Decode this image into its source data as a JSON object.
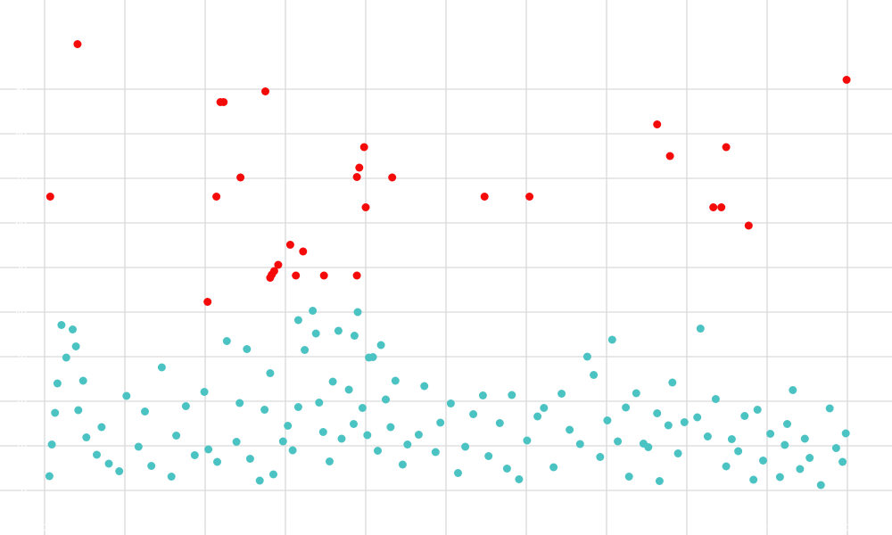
{
  "chart_data": {
    "type": "scatter",
    "title": "",
    "xlabel": "",
    "ylabel": "",
    "xlim": [
      0,
      100
    ],
    "ylim": [
      0,
      100
    ],
    "x_ticks": [
      0,
      10,
      20,
      30,
      40,
      50,
      60,
      70,
      80,
      90,
      100
    ],
    "y_ticks": [
      0,
      10,
      20,
      30,
      40,
      50,
      60,
      70,
      80,
      90
    ],
    "grid": true,
    "legend": "none",
    "series": [
      {
        "color": "#4cc3c3",
        "points": [
          [
            0.6,
            3.2
          ],
          [
            0.9,
            10.3
          ],
          [
            1.3,
            17.4
          ],
          [
            1.6,
            24.0
          ],
          [
            2.1,
            37.1
          ],
          [
            2.7,
            29.8
          ],
          [
            3.5,
            36.1
          ],
          [
            3.9,
            32.3
          ],
          [
            4.2,
            18.0
          ],
          [
            4.8,
            24.6
          ],
          [
            5.2,
            11.9
          ],
          [
            6.5,
            8.0
          ],
          [
            7.1,
            14.2
          ],
          [
            8.0,
            6.0
          ],
          [
            9.3,
            4.3
          ],
          [
            10.2,
            21.2
          ],
          [
            11.7,
            9.8
          ],
          [
            12.5,
            17.7
          ],
          [
            13.3,
            5.5
          ],
          [
            14.6,
            27.6
          ],
          [
            15.8,
            3.1
          ],
          [
            16.4,
            12.3
          ],
          [
            17.6,
            18.9
          ],
          [
            18.7,
            7.9
          ],
          [
            19.9,
            22.1
          ],
          [
            20.4,
            9.2
          ],
          [
            21.5,
            6.4
          ],
          [
            22.7,
            33.5
          ],
          [
            23.9,
            10.9
          ],
          [
            24.3,
            19.6
          ],
          [
            25.2,
            31.7
          ],
          [
            25.6,
            7.1
          ],
          [
            26.8,
            2.2
          ],
          [
            27.4,
            18.1
          ],
          [
            28.1,
            26.3
          ],
          [
            28.5,
            3.6
          ],
          [
            29.7,
            11.0
          ],
          [
            30.3,
            14.5
          ],
          [
            30.9,
            9.0
          ],
          [
            31.6,
            18.7
          ],
          [
            31.6,
            38.2
          ],
          [
            32.4,
            31.5
          ],
          [
            33.4,
            40.3
          ],
          [
            33.8,
            35.2
          ],
          [
            34.2,
            19.7
          ],
          [
            34.7,
            13.1
          ],
          [
            35.5,
            6.5
          ],
          [
            35.9,
            24.4
          ],
          [
            36.6,
            35.8
          ],
          [
            37.0,
            11.6
          ],
          [
            37.9,
            22.6
          ],
          [
            38.5,
            14.9
          ],
          [
            38.6,
            34.7
          ],
          [
            39.0,
            40.0
          ],
          [
            39.6,
            18.5
          ],
          [
            40.2,
            12.4
          ],
          [
            40.4,
            29.8
          ],
          [
            40.9,
            29.9
          ],
          [
            41.5,
            8.9
          ],
          [
            41.9,
            32.6
          ],
          [
            42.5,
            20.4
          ],
          [
            43.1,
            14.2
          ],
          [
            43.7,
            24.6
          ],
          [
            44.6,
            5.8
          ],
          [
            45.2,
            10.3
          ],
          [
            46.6,
            12.5
          ],
          [
            47.3,
            23.4
          ],
          [
            48.7,
            8.6
          ],
          [
            49.3,
            15.2
          ],
          [
            50.6,
            19.5
          ],
          [
            51.5,
            3.9
          ],
          [
            52.4,
            9.8
          ],
          [
            53.4,
            17.1
          ],
          [
            54.6,
            21.3
          ],
          [
            55.3,
            7.7
          ],
          [
            56.7,
            15.1
          ],
          [
            57.6,
            4.9
          ],
          [
            58.2,
            21.4
          ],
          [
            59.1,
            2.5
          ],
          [
            60.1,
            11.2
          ],
          [
            61.4,
            16.6
          ],
          [
            62.2,
            18.5
          ],
          [
            63.4,
            5.2
          ],
          [
            64.4,
            21.7
          ],
          [
            65.4,
            13.6
          ],
          [
            66.7,
            10.4
          ],
          [
            67.6,
            30.0
          ],
          [
            68.4,
            25.9
          ],
          [
            69.2,
            7.5
          ],
          [
            70.1,
            15.7
          ],
          [
            70.7,
            33.8
          ],
          [
            71.4,
            11.0
          ],
          [
            72.4,
            18.6
          ],
          [
            72.8,
            3.1
          ],
          [
            73.7,
            21.8
          ],
          [
            74.6,
            10.5
          ],
          [
            75.2,
            9.7
          ],
          [
            76.3,
            17.3
          ],
          [
            76.6,
            2.1
          ],
          [
            77.7,
            14.6
          ],
          [
            78.2,
            24.2
          ],
          [
            78.9,
            8.3
          ],
          [
            79.7,
            15.3
          ],
          [
            81.3,
            16.4
          ],
          [
            81.7,
            36.3
          ],
          [
            82.6,
            12.1
          ],
          [
            83.6,
            20.5
          ],
          [
            84.9,
            5.4
          ],
          [
            85.6,
            11.5
          ],
          [
            86.4,
            8.8
          ],
          [
            87.2,
            16.7
          ],
          [
            88.3,
            2.4
          ],
          [
            88.8,
            18.1
          ],
          [
            89.5,
            6.7
          ],
          [
            90.4,
            12.7
          ],
          [
            91.6,
            3.0
          ],
          [
            92.2,
            10.2
          ],
          [
            92.5,
            14.9
          ],
          [
            93.2,
            22.5
          ],
          [
            94.1,
            4.8
          ],
          [
            94.7,
            11.6
          ],
          [
            95.3,
            7.3
          ],
          [
            96.7,
            1.2
          ],
          [
            97.8,
            18.4
          ],
          [
            98.6,
            9.5
          ],
          [
            99.4,
            6.4
          ],
          [
            99.8,
            12.8
          ]
        ]
      },
      {
        "color": "#f50a0a",
        "points": [
          [
            0.7,
            65.9
          ],
          [
            4.1,
            100.1
          ],
          [
            20.3,
            42.3
          ],
          [
            21.4,
            65.9
          ],
          [
            21.9,
            87.1
          ],
          [
            22.3,
            87.1
          ],
          [
            24.4,
            70.2
          ],
          [
            27.5,
            89.5
          ],
          [
            28.1,
            47.7
          ],
          [
            28.6,
            49.2
          ],
          [
            28.3,
            48.4
          ],
          [
            29.1,
            50.6
          ],
          [
            30.6,
            55.1
          ],
          [
            31.3,
            48.2
          ],
          [
            32.2,
            53.6
          ],
          [
            34.8,
            48.2
          ],
          [
            38.9,
            48.2
          ],
          [
            38.9,
            70.3
          ],
          [
            39.2,
            72.4
          ],
          [
            39.8,
            77.0
          ],
          [
            40.0,
            63.5
          ],
          [
            43.3,
            70.2
          ],
          [
            54.8,
            65.9
          ],
          [
            60.4,
            65.9
          ],
          [
            76.3,
            82.1
          ],
          [
            77.9,
            75.0
          ],
          [
            83.3,
            63.5
          ],
          [
            84.3,
            63.5
          ],
          [
            84.9,
            77.0
          ],
          [
            87.7,
            59.4
          ],
          [
            99.9,
            92.1
          ]
        ]
      }
    ]
  }
}
